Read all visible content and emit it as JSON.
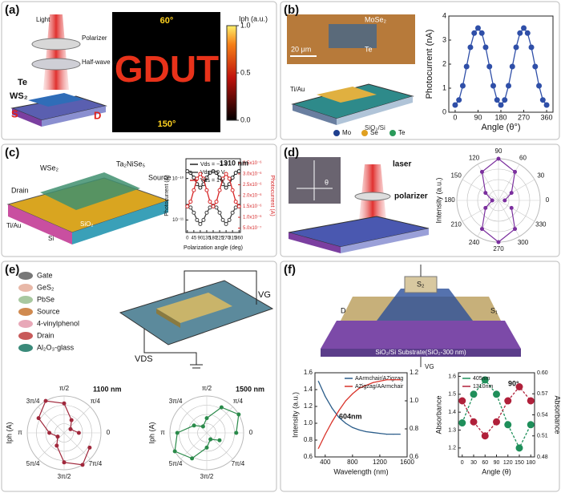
{
  "panel_labels": [
    "(a)",
    "(b)",
    "(c)",
    "(d)",
    "(e)",
    "(f)"
  ],
  "diagram_a": {
    "light": "Light",
    "polarizer": "Polarizer",
    "waveplate": "Half-wave plate",
    "te": "Te",
    "ws2": "WS₂",
    "source": "S",
    "drain": "D",
    "angle_top": "60°",
    "angle_bottom": "150°",
    "image_text": "GDUT"
  },
  "diagram_b": {
    "mose2": "MoSe₂",
    "te": "Te",
    "scale": "20 μm",
    "electrode": "Ti/Au",
    "substrate": "SiO₂/Si",
    "legend": [
      "Mo",
      "Se",
      "Te"
    ]
  },
  "diagram_c": {
    "wse2": "WSe₂",
    "ta2nise5": "Ta₂NiSe₅",
    "source": "Source",
    "drain": "Drain",
    "electrode": "Ti/Au",
    "sio2": "SiO₂",
    "si": "Si"
  },
  "diagram_d": {
    "laser": "laser",
    "polarizer": "polarizer",
    "theta": "θ"
  },
  "diagram_e": {
    "legend": [
      "Gate",
      "GeS₂",
      "PbSe",
      "Source",
      "4-vinylphenol",
      "Drain",
      "Al₂O₃-glass"
    ],
    "vg": "VG",
    "vds": "VDS"
  },
  "diagram_f": {
    "s1": "S₁",
    "s2": "S₂",
    "d": "D",
    "substrate": "SiO₂/Si Substrate(SiO₂-300 nm)",
    "vg": "VG"
  },
  "chart_data": [
    {
      "type": "colorbar",
      "label": "Iph (a.u.)",
      "ylim": [
        0,
        1
      ],
      "yticks": [
        {
          "value": 0,
          "label": "0.0"
        },
        {
          "value": 0.5,
          "label": "0.5"
        },
        {
          "value": 1,
          "label": "1.0"
        }
      ]
    },
    {
      "type": "line",
      "xlabel": "Angle (θ°)",
      "ylabel": "Photocurrent (nA)",
      "x": [
        0,
        15,
        30,
        45,
        60,
        75,
        90,
        105,
        120,
        135,
        150,
        165,
        180,
        195,
        210,
        225,
        240,
        255,
        270,
        285,
        300,
        315,
        330,
        345,
        360
      ],
      "xlim": [
        -25,
        385
      ],
      "xticks": [
        0,
        90,
        180,
        270,
        360
      ],
      "ylim": [
        0,
        4
      ],
      "yticks": [
        0,
        1,
        2,
        3,
        4
      ],
      "series": [
        {
          "color": "#2f4fa8",
          "values": [
            0.3,
            0.51,
            1.1,
            1.9,
            2.7,
            3.29,
            3.5,
            3.29,
            2.7,
            1.9,
            1.1,
            0.51,
            0.3,
            0.51,
            1.1,
            1.9,
            2.7,
            3.29,
            3.5,
            3.29,
            2.7,
            1.9,
            1.1,
            0.51,
            0.3
          ]
        }
      ]
    },
    {
      "type": "line",
      "xlabel": "Polarization angle (deg)",
      "ylabel": "Photocurrent (A)",
      "y2label": "Photocurrent (A)",
      "annotation": "1310 nm",
      "x": [
        0,
        22.5,
        45,
        67.5,
        90,
        112.5,
        135,
        157.5,
        180,
        202.5,
        225,
        247.5,
        270,
        292.5,
        315,
        337.5,
        360
      ],
      "xlim": [
        -10,
        370
      ],
      "xticks": [
        0,
        45,
        90,
        135,
        180,
        225,
        270,
        315,
        360
      ],
      "ylog": true,
      "ylim": [
        5e-12,
        3e-10
      ],
      "yticks": [
        {
          "value": 1e-10,
          "label": "10⁻¹⁰"
        },
        {
          "value": 1e-11,
          "label": "10⁻¹¹"
        }
      ],
      "y2lim": [
        3e-07,
        3.7e-06
      ],
      "y2ticks": [
        {
          "value": 3.5e-06,
          "label": "3.5x10⁻⁶"
        },
        {
          "value": 3e-06,
          "label": "3.0x10⁻⁶"
        },
        {
          "value": 2.5e-06,
          "label": "2.5x10⁻⁶"
        },
        {
          "value": 2e-06,
          "label": "2.0x10⁻⁶"
        },
        {
          "value": 1.5e-06,
          "label": "1.5x10⁻⁶"
        },
        {
          "value": 1e-06,
          "label": "1.0x10⁻⁶"
        },
        {
          "value": 5e-07,
          "label": "5.0x10⁻⁷"
        }
      ],
      "legend": "upper left",
      "series": [
        {
          "name": "Vds = −1 V",
          "color": "#222222",
          "values": [
            1.5e-10,
            1.37e-10,
            1.05e-10,
            7.3e-11,
            6e-11,
            7.3e-11,
            1.05e-10,
            1.37e-10,
            1.5e-10,
            1.37e-10,
            1.05e-10,
            7.3e-11,
            6e-11,
            7.3e-11,
            1.05e-10,
            1.37e-10,
            1.5e-10
          ]
        },
        {
          "name": "Vds = 0 V",
          "color": "#444444",
          "values": [
            2.2e-11,
            2e-11,
            1.5e-11,
            1e-11,
            8e-12,
            1e-11,
            1.5e-11,
            2e-11,
            2.2e-11,
            2e-11,
            1.5e-11,
            1e-11,
            8e-12,
            1e-11,
            1.5e-11,
            2e-11,
            2.2e-11
          ]
        },
        {
          "name": "Vds = 1 V",
          "color": "#d62728",
          "axis": "y2",
          "values": [
            1.5e-06,
            1.72e-06,
            2.25e-06,
            2.78e-06,
            3e-06,
            2.78e-06,
            2.25e-06,
            1.72e-06,
            1.5e-06,
            1.72e-06,
            2.25e-06,
            2.78e-06,
            3e-06,
            2.78e-06,
            2.25e-06,
            1.72e-06,
            1.5e-06
          ]
        }
      ]
    },
    {
      "type": "polar",
      "rlabel": "Intensity (a.u.)",
      "theta": [
        0,
        30,
        60,
        90,
        120,
        150,
        180,
        210,
        240,
        270,
        300,
        330
      ],
      "rlim": [
        0,
        1
      ],
      "thetaticks": [
        0,
        30,
        60,
        90,
        120,
        150,
        180,
        210,
        240,
        270,
        300,
        330
      ],
      "series": [
        {
          "color": "#7b2f9e",
          "values": [
            0.15,
            0.36,
            0.79,
            1,
            0.79,
            0.36,
            0.15,
            0.36,
            0.79,
            1,
            0.79,
            0.36
          ]
        }
      ]
    },
    {
      "type": "polar",
      "rlabel": "Iph (A)",
      "annotation": "1100 nm",
      "theta": [
        0,
        30,
        60,
        90,
        120,
        150,
        180,
        210,
        240,
        270,
        300,
        330
      ],
      "rlim": [
        0,
        1
      ],
      "thetaticks": [
        0,
        {
          "value": 45,
          "label": "π/4"
        },
        {
          "value": 90,
          "label": "π/2"
        },
        {
          "value": 135,
          "label": "3π/4"
        },
        {
          "value": 180,
          "label": "π"
        },
        {
          "value": 225,
          "label": "5π/4"
        },
        {
          "value": 270,
          "label": "3π/2"
        },
        {
          "value": 315,
          "label": "7π/4"
        }
      ],
      "series": [
        {
          "color": "#a0283c",
          "values": [
            0.4,
            0.2,
            0.4,
            0.8,
            1,
            0.8,
            0.4,
            0.2,
            0.4,
            0.8,
            1,
            0.8
          ]
        }
      ]
    },
    {
      "type": "polar",
      "rlabel": "Iph (A)",
      "annotation": "1500 nm",
      "theta": [
        0,
        30,
        60,
        90,
        120,
        150,
        180,
        210,
        240,
        270,
        300,
        330
      ],
      "rlim": [
        0,
        1
      ],
      "thetaticks": [
        0,
        {
          "value": 45,
          "label": "π/4"
        },
        {
          "value": 90,
          "label": "π/2"
        },
        {
          "value": 135,
          "label": "3π/4"
        },
        {
          "value": 180,
          "label": "π"
        },
        {
          "value": 225,
          "label": "5π/4"
        },
        {
          "value": 270,
          "label": "3π/2"
        },
        {
          "value": 315,
          "label": "7π/4"
        }
      ],
      "series": [
        {
          "color": "#2a8a4a",
          "values": [
            0.8,
            1,
            0.8,
            0.4,
            0.2,
            0.4,
            0.8,
            1,
            0.8,
            0.4,
            0.2,
            0.4
          ]
        }
      ]
    },
    {
      "type": "line",
      "xlabel": "Wavelength (nm)",
      "ylabel": "Intensity (a.u.)",
      "annotation": "604nm",
      "x": [
        300,
        400,
        500,
        600,
        700,
        800,
        900,
        1000,
        1100,
        1200,
        1300,
        1400,
        1500
      ],
      "xlim": [
        250,
        1600
      ],
      "xticks": [
        400,
        800,
        1200,
        1600
      ],
      "ylim": [
        0.6,
        1.6
      ],
      "yticks": [
        0.6,
        0.8,
        {
          "value": 1,
          "label": "1.0"
        },
        1.2,
        1.4,
        1.6
      ],
      "y2lim": [
        0.6,
        1.2
      ],
      "y2ticks": [
        0.6,
        0.8,
        {
          "value": 1,
          "label": "1.0"
        },
        1.2
      ],
      "legend": "upper right",
      "series": [
        {
          "name": "AArmchair/AZigzag",
          "color": "#2b5d8a",
          "values": [
            1.5,
            1.32,
            1.18,
            1.07,
            1,
            0.95,
            0.92,
            0.9,
            0.89,
            0.88,
            0.87,
            0.87,
            0.87
          ]
        },
        {
          "name": "AZigzag/AArmchair",
          "color": "#d9342b",
          "axis": "y2",
          "values": [
            0.66,
            0.76,
            0.85,
            0.93,
            1,
            1.05,
            1.09,
            1.11,
            1.13,
            1.14,
            1.15,
            1.15,
            1.15
          ]
        }
      ]
    },
    {
      "type": "line",
      "xlabel": "Angle (θ)",
      "ylabel": "Absorbance",
      "y2label": "Absorbance",
      "annotation": "90°",
      "x": [
        0,
        30,
        60,
        90,
        120,
        150,
        180
      ],
      "xlim": [
        -10,
        190
      ],
      "xticks": [
        0,
        30,
        60,
        90,
        120,
        150,
        180
      ],
      "ylim": [
        1.15,
        1.62
      ],
      "yticks": [
        1.2,
        1.3,
        1.4,
        1.5,
        1.6
      ],
      "y2lim": [
        0.48,
        0.6
      ],
      "y2ticks": [
        0.48,
        0.51,
        0.54,
        0.57,
        {
          "value": 0.6,
          "label": "0.60"
        }
      ],
      "legend": "upper left",
      "series": [
        {
          "name": "405nm",
          "color": "#1f8f5a",
          "values": [
            1.34,
            1.5,
            1.58,
            1.5,
            1.33,
            1.2,
            1.33
          ]
        },
        {
          "name": "1310nm",
          "color": "#b0203a",
          "axis": "y2",
          "values": [
            0.56,
            0.53,
            0.51,
            0.53,
            0.56,
            0.58,
            0.56
          ]
        }
      ]
    }
  ]
}
